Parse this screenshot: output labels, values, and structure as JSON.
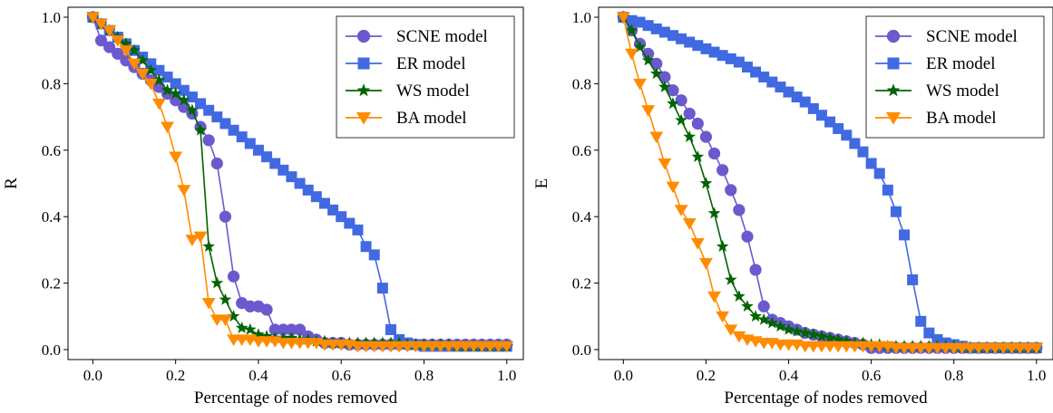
{
  "chart_data": [
    {
      "type": "line",
      "xlabel": "Percentage of nodes removed",
      "ylabel": "R",
      "xlim": [
        -0.06,
        1.04
      ],
      "ylim": [
        -0.03,
        1.03
      ],
      "xticks": [
        "0.0",
        "0.2",
        "0.4",
        "0.6",
        "0.8",
        "1.0"
      ],
      "yticks": [
        "0.0",
        "0.2",
        "0.4",
        "0.6",
        "0.8",
        "1.0"
      ],
      "grid": false,
      "legend": "top-right",
      "x": [
        0.0,
        0.02,
        0.04,
        0.06,
        0.08,
        0.1,
        0.12,
        0.14,
        0.16,
        0.18,
        0.2,
        0.22,
        0.24,
        0.26,
        0.28,
        0.3,
        0.32,
        0.34,
        0.36,
        0.38,
        0.4,
        0.42,
        0.44,
        0.46,
        0.48,
        0.5,
        0.52,
        0.54,
        0.56,
        0.58,
        0.6,
        0.62,
        0.64,
        0.66,
        0.68,
        0.7,
        0.72,
        0.74,
        0.76,
        0.78,
        0.8,
        0.82,
        0.84,
        0.86,
        0.88,
        0.9,
        0.92,
        0.94,
        0.96,
        0.98,
        1.0
      ],
      "series": [
        {
          "name": "SCNE model",
          "color": "#6a5acd",
          "marker": "circle",
          "values": [
            1.0,
            0.93,
            0.91,
            0.89,
            0.87,
            0.85,
            0.83,
            0.81,
            0.79,
            0.77,
            0.75,
            0.73,
            0.71,
            0.67,
            0.63,
            0.56,
            0.4,
            0.22,
            0.14,
            0.13,
            0.13,
            0.12,
            0.06,
            0.06,
            0.06,
            0.06,
            0.04,
            0.03,
            0.02,
            0.02,
            0.02,
            0.015,
            0.015,
            0.015,
            0.015,
            0.015,
            0.015,
            0.015,
            0.015,
            0.015,
            0.015,
            0.015,
            0.015,
            0.015,
            0.015,
            0.015,
            0.015,
            0.015,
            0.015,
            0.015,
            0.015
          ]
        },
        {
          "name": "ER model",
          "color": "#4169e1",
          "marker": "square",
          "values": [
            1.0,
            0.98,
            0.96,
            0.94,
            0.92,
            0.9,
            0.88,
            0.86,
            0.84,
            0.82,
            0.8,
            0.78,
            0.76,
            0.74,
            0.72,
            0.7,
            0.68,
            0.66,
            0.64,
            0.62,
            0.6,
            0.58,
            0.56,
            0.54,
            0.52,
            0.5,
            0.48,
            0.46,
            0.44,
            0.42,
            0.4,
            0.38,
            0.36,
            0.31,
            0.285,
            0.185,
            0.06,
            0.03,
            0.02,
            0.015,
            0.01,
            0.01,
            0.01,
            0.01,
            0.01,
            0.01,
            0.01,
            0.01,
            0.01,
            0.01,
            0.01
          ]
        },
        {
          "name": "WS model",
          "color": "#006400",
          "marker": "star",
          "values": [
            1.0,
            0.98,
            0.96,
            0.94,
            0.92,
            0.9,
            0.87,
            0.84,
            0.81,
            0.78,
            0.77,
            0.75,
            0.72,
            0.66,
            0.31,
            0.2,
            0.15,
            0.1,
            0.065,
            0.06,
            0.045,
            0.04,
            0.035,
            0.035,
            0.035,
            0.03,
            0.03,
            0.025,
            0.025,
            0.02,
            0.02,
            0.02,
            0.02,
            0.02,
            0.02,
            0.02,
            0.02,
            0.02,
            0.015,
            0.015,
            0.015,
            0.015,
            0.015,
            0.015,
            0.01,
            0.01,
            0.01,
            0.01,
            0.01,
            0.01,
            0.01
          ]
        },
        {
          "name": "BA model",
          "color": "#ff8c00",
          "marker": "triangle-down",
          "values": [
            1.0,
            0.98,
            0.96,
            0.93,
            0.9,
            0.86,
            0.83,
            0.8,
            0.74,
            0.67,
            0.58,
            0.48,
            0.33,
            0.34,
            0.14,
            0.09,
            0.09,
            0.03,
            0.03,
            0.03,
            0.025,
            0.025,
            0.025,
            0.02,
            0.02,
            0.02,
            0.02,
            0.02,
            0.015,
            0.015,
            0.015,
            0.015,
            0.01,
            0.01,
            0.01,
            0.01,
            0.01,
            0.01,
            0.01,
            0.01,
            0.01,
            0.01,
            0.01,
            0.01,
            0.01,
            0.01,
            0.01,
            0.01,
            0.01,
            0.01,
            0.01
          ]
        }
      ]
    },
    {
      "type": "line",
      "xlabel": "Percentage of nodes removed",
      "ylabel": "E",
      "xlim": [
        -0.06,
        1.04
      ],
      "ylim": [
        -0.03,
        1.03
      ],
      "xticks": [
        "0.0",
        "0.2",
        "0.4",
        "0.6",
        "0.8",
        "1.0"
      ],
      "yticks": [
        "0.0",
        "0.2",
        "0.4",
        "0.6",
        "0.8",
        "1.0"
      ],
      "grid": false,
      "legend": "top-right",
      "x": [
        0.0,
        0.02,
        0.04,
        0.06,
        0.08,
        0.1,
        0.12,
        0.14,
        0.16,
        0.18,
        0.2,
        0.22,
        0.24,
        0.26,
        0.28,
        0.3,
        0.32,
        0.34,
        0.36,
        0.38,
        0.4,
        0.42,
        0.44,
        0.46,
        0.48,
        0.5,
        0.52,
        0.54,
        0.56,
        0.58,
        0.6,
        0.62,
        0.64,
        0.66,
        0.68,
        0.7,
        0.72,
        0.74,
        0.76,
        0.78,
        0.8,
        0.82,
        0.84,
        0.86,
        0.88,
        0.9,
        0.92,
        0.94,
        0.96,
        0.98,
        1.0
      ],
      "series": [
        {
          "name": "SCNE model",
          "color": "#6a5acd",
          "marker": "circle",
          "values": [
            1.0,
            0.96,
            0.92,
            0.89,
            0.86,
            0.82,
            0.78,
            0.75,
            0.71,
            0.68,
            0.64,
            0.59,
            0.54,
            0.48,
            0.42,
            0.34,
            0.24,
            0.13,
            0.09,
            0.08,
            0.07,
            0.06,
            0.05,
            0.045,
            0.04,
            0.035,
            0.03,
            0.025,
            0.02,
            0.015,
            0.005,
            0.005,
            0.005,
            0.005,
            0.005,
            0.005,
            0.005,
            0.005,
            0.005,
            0.005,
            0.005,
            0.005,
            0.005,
            0.005,
            0.005,
            0.005,
            0.005,
            0.005,
            0.005,
            0.005,
            0.005
          ]
        },
        {
          "name": "ER model",
          "color": "#4169e1",
          "marker": "square",
          "values": [
            1.0,
            0.99,
            0.985,
            0.975,
            0.965,
            0.955,
            0.945,
            0.935,
            0.925,
            0.915,
            0.905,
            0.895,
            0.885,
            0.875,
            0.865,
            0.85,
            0.835,
            0.82,
            0.805,
            0.79,
            0.775,
            0.76,
            0.745,
            0.725,
            0.705,
            0.685,
            0.665,
            0.645,
            0.62,
            0.595,
            0.56,
            0.53,
            0.48,
            0.415,
            0.345,
            0.21,
            0.085,
            0.05,
            0.03,
            0.02,
            0.015,
            0.01,
            0.005,
            0.005,
            0.005,
            0.005,
            0.005,
            0.005,
            0.005,
            0.005,
            0.005
          ]
        },
        {
          "name": "WS model",
          "color": "#006400",
          "marker": "star",
          "values": [
            1.0,
            0.96,
            0.91,
            0.87,
            0.83,
            0.79,
            0.74,
            0.69,
            0.64,
            0.58,
            0.5,
            0.41,
            0.31,
            0.21,
            0.16,
            0.13,
            0.1,
            0.09,
            0.08,
            0.07,
            0.06,
            0.055,
            0.05,
            0.045,
            0.04,
            0.035,
            0.03,
            0.025,
            0.02,
            0.02,
            0.015,
            0.015,
            0.01,
            0.01,
            0.01,
            0.01,
            0.01,
            0.01,
            0.01,
            0.01,
            0.01,
            0.005,
            0.005,
            0.005,
            0.005,
            0.005,
            0.005,
            0.005,
            0.005,
            0.005,
            0.005
          ]
        },
        {
          "name": "BA model",
          "color": "#ff8c00",
          "marker": "triangle-down",
          "values": [
            1.0,
            0.89,
            0.8,
            0.72,
            0.64,
            0.56,
            0.49,
            0.42,
            0.38,
            0.32,
            0.26,
            0.16,
            0.1,
            0.06,
            0.04,
            0.03,
            0.025,
            0.02,
            0.02,
            0.015,
            0.015,
            0.015,
            0.01,
            0.01,
            0.01,
            0.01,
            0.01,
            0.01,
            0.01,
            0.01,
            0.01,
            0.01,
            0.01,
            0.005,
            0.005,
            0.005,
            0.005,
            0.005,
            0.005,
            0.005,
            0.005,
            0.005,
            0.005,
            0.005,
            0.005,
            0.005,
            0.005,
            0.005,
            0.005,
            0.005,
            0.005
          ]
        }
      ]
    }
  ]
}
